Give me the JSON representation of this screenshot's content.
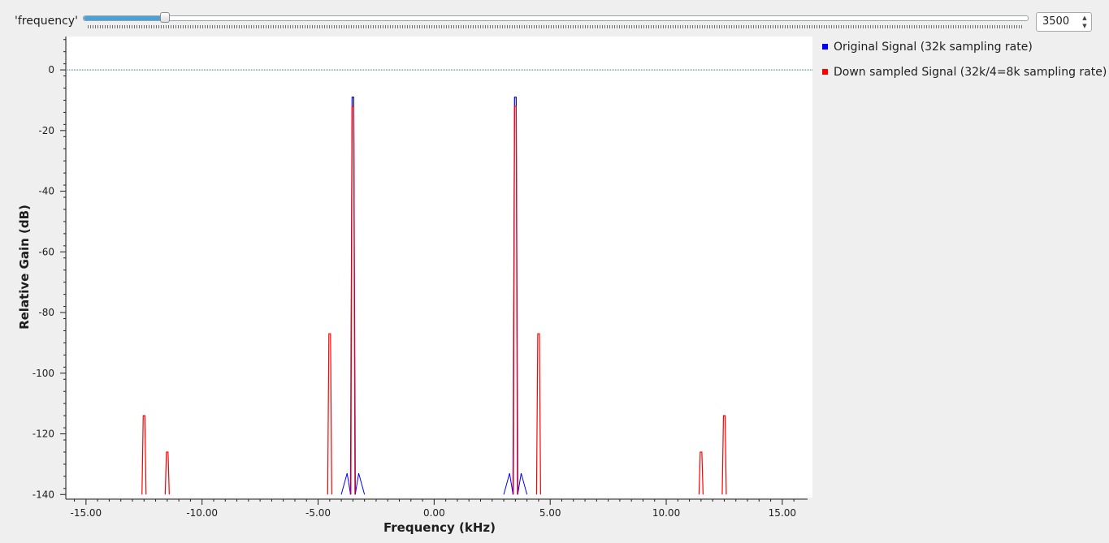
{
  "slider": {
    "label": "'frequency'",
    "value": "3500",
    "position_fraction": 0.087
  },
  "legend": [
    {
      "label": "Original Signal (32k sampling rate)",
      "color": "#0000ff"
    },
    {
      "label": "Down sampled Signal (32k/4=8k sampling rate)",
      "color": "#ff0000"
    }
  ],
  "chart_data": {
    "type": "line",
    "xlabel": "Frequency (kHz)",
    "ylabel": "Relative Gain (dB)",
    "xlim": [
      -15.8,
      16.3
    ],
    "ylim": [
      -141,
      11
    ],
    "x_ticks": [
      -15,
      -10,
      -5,
      0,
      5,
      10,
      15
    ],
    "x_tick_labels": [
      "-15.00",
      "-10.00",
      "-5.00",
      "0.00",
      "5.00",
      "10.00",
      "15.00"
    ],
    "y_ticks": [
      0,
      -20,
      -40,
      -60,
      -80,
      -100,
      -120,
      -140
    ],
    "y_tick_labels": [
      "0",
      "-20",
      "-40",
      "-60",
      "-80",
      "-100",
      "-120",
      "-140"
    ],
    "reference_line_y": 0,
    "series": [
      {
        "name": "Original Signal (32k sampling rate)",
        "color": "#0000ff",
        "peaks": [
          {
            "x": -3.5,
            "y": -9
          },
          {
            "x": 3.5,
            "y": -9
          }
        ],
        "skirt_points": [
          {
            "x": -4.0,
            "y": -140
          },
          {
            "x": -3.75,
            "y": -133
          },
          {
            "x": -3.6,
            "y": -140
          },
          {
            "x": -3.4,
            "y": -140
          },
          {
            "x": -3.25,
            "y": -133
          },
          {
            "x": -3.0,
            "y": -140
          },
          {
            "x": 3.0,
            "y": -140
          },
          {
            "x": 3.25,
            "y": -133
          },
          {
            "x": 3.4,
            "y": -140
          },
          {
            "x": 3.6,
            "y": -140
          },
          {
            "x": 3.75,
            "y": -133
          },
          {
            "x": 4.0,
            "y": -140
          }
        ]
      },
      {
        "name": "Down sampled Signal (32k/4=8k sampling rate)",
        "color": "#ff0000",
        "peaks": [
          {
            "x": -12.5,
            "y": -114
          },
          {
            "x": -11.5,
            "y": -126
          },
          {
            "x": -4.5,
            "y": -87
          },
          {
            "x": -3.5,
            "y": -12
          },
          {
            "x": 3.5,
            "y": -12
          },
          {
            "x": 4.5,
            "y": -87
          },
          {
            "x": 11.5,
            "y": -126
          },
          {
            "x": 12.5,
            "y": -114
          }
        ]
      }
    ],
    "grid": false,
    "legend_position": "right"
  }
}
